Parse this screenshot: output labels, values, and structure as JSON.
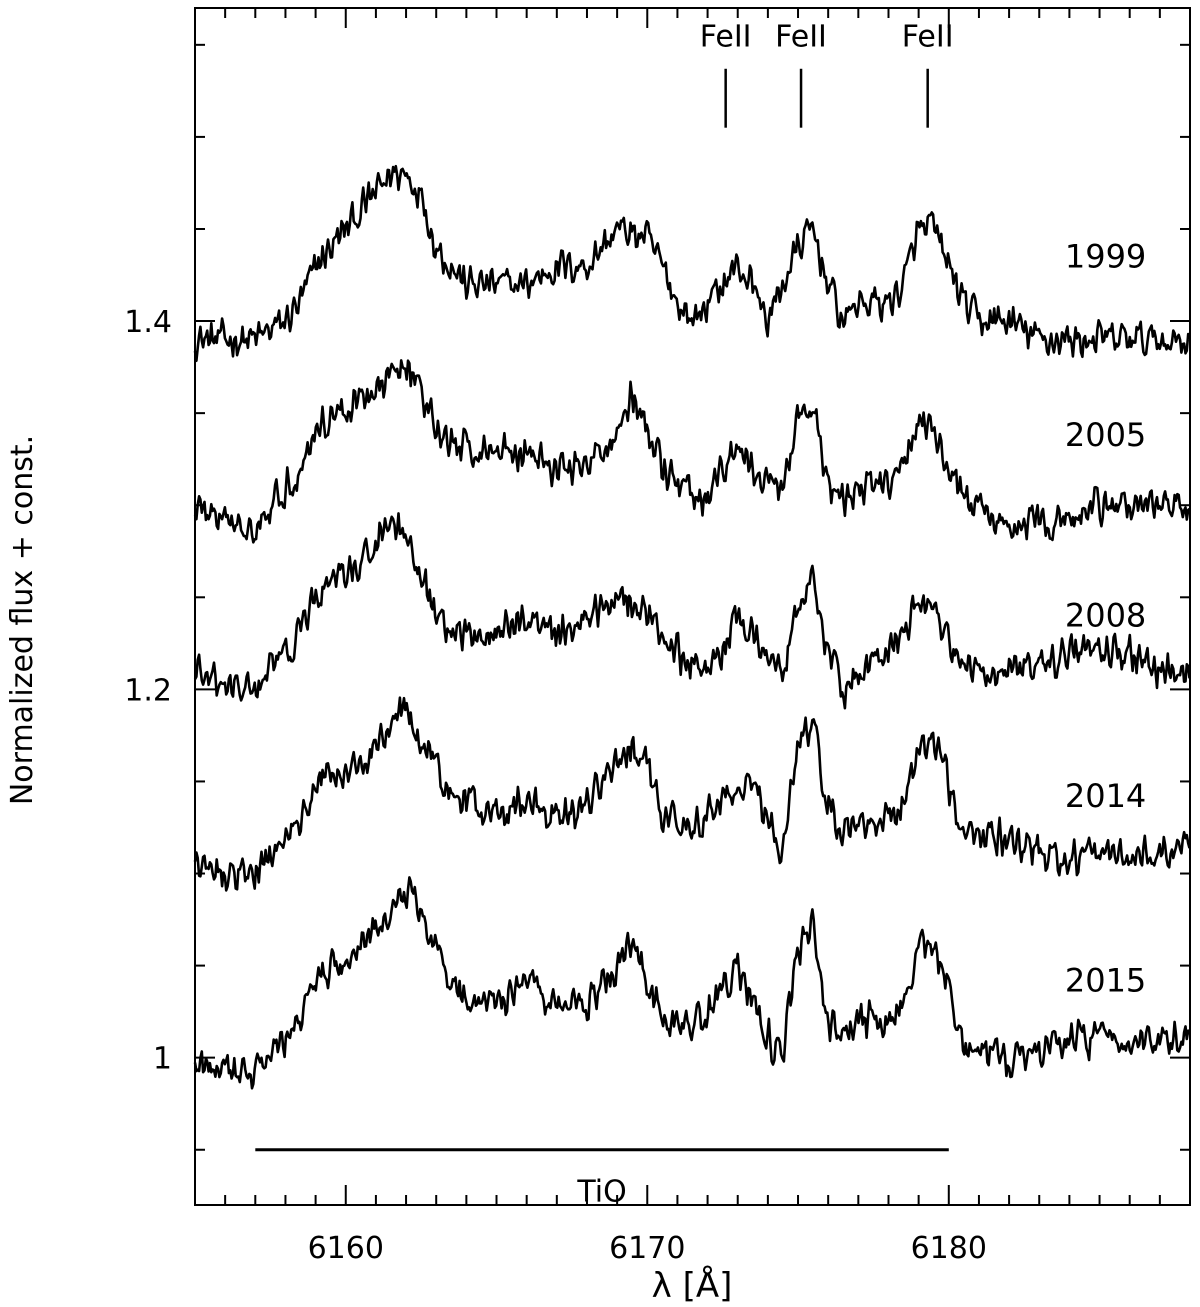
{
  "chart_data": {
    "type": "line",
    "title": "",
    "xlabel": "λ [Å]",
    "ylabel": "Normalized flux + const.",
    "xlim": [
      6155,
      6188
    ],
    "ylim": [
      0.92,
      1.57
    ],
    "x_ticks": [
      6160,
      6170,
      6180
    ],
    "x_tick_labels": [
      "6160",
      "6170",
      "6180"
    ],
    "y_ticks": [
      1.0,
      1.2,
      1.4
    ],
    "y_tick_labels": [
      "1",
      "1.2",
      "1.4"
    ],
    "grid": false,
    "series": [
      {
        "name": "1999",
        "label_x": 6185.2,
        "label_y": 1.435,
        "points": [
          [
            6155,
            1.39
          ],
          [
            6156,
            1.39
          ],
          [
            6157,
            1.39
          ],
          [
            6158,
            1.4
          ],
          [
            6158.5,
            1.41
          ],
          [
            6159,
            1.43
          ],
          [
            6159.5,
            1.44
          ],
          [
            6160,
            1.45
          ],
          [
            6160.5,
            1.46
          ],
          [
            6161,
            1.47
          ],
          [
            6161.5,
            1.48
          ],
          [
            6162,
            1.48
          ],
          [
            6162.5,
            1.47
          ],
          [
            6163,
            1.44
          ],
          [
            6163.5,
            1.43
          ],
          [
            6164,
            1.42
          ],
          [
            6165,
            1.42
          ],
          [
            6166,
            1.42
          ],
          [
            6167,
            1.43
          ],
          [
            6168,
            1.43
          ],
          [
            6169,
            1.45
          ],
          [
            6170,
            1.445
          ],
          [
            6170.5,
            1.43
          ],
          [
            6171,
            1.41
          ],
          [
            6171.5,
            1.4
          ],
          [
            6172,
            1.41
          ],
          [
            6172.5,
            1.42
          ],
          [
            6173,
            1.43
          ],
          [
            6173.5,
            1.42
          ],
          [
            6174,
            1.4
          ],
          [
            6174.5,
            1.42
          ],
          [
            6175,
            1.44
          ],
          [
            6175.5,
            1.45
          ],
          [
            6176,
            1.42
          ],
          [
            6176.5,
            1.4
          ],
          [
            6177,
            1.41
          ],
          [
            6178,
            1.41
          ],
          [
            6178.5,
            1.42
          ],
          [
            6179,
            1.45
          ],
          [
            6179.5,
            1.45
          ],
          [
            6180,
            1.43
          ],
          [
            6180.5,
            1.41
          ],
          [
            6181,
            1.4
          ],
          [
            6182,
            1.4
          ],
          [
            6183,
            1.39
          ],
          [
            6184,
            1.39
          ],
          [
            6185,
            1.39
          ],
          [
            6186,
            1.39
          ],
          [
            6187,
            1.39
          ],
          [
            6188,
            1.39
          ]
        ]
      },
      {
        "name": "2005",
        "label_x": 6185.2,
        "label_y": 1.338,
        "points": [
          [
            6155,
            1.3
          ],
          [
            6156,
            1.29
          ],
          [
            6157,
            1.29
          ],
          [
            6158,
            1.31
          ],
          [
            6158.5,
            1.32
          ],
          [
            6159,
            1.34
          ],
          [
            6159.5,
            1.35
          ],
          [
            6160,
            1.35
          ],
          [
            6160.5,
            1.36
          ],
          [
            6161,
            1.36
          ],
          [
            6161.5,
            1.37
          ],
          [
            6162,
            1.38
          ],
          [
            6162.5,
            1.36
          ],
          [
            6163,
            1.34
          ],
          [
            6164,
            1.33
          ],
          [
            6165,
            1.33
          ],
          [
            6166,
            1.33
          ],
          [
            6167,
            1.32
          ],
          [
            6168,
            1.32
          ],
          [
            6169,
            1.34
          ],
          [
            6169.5,
            1.36
          ],
          [
            6170,
            1.34
          ],
          [
            6170.5,
            1.32
          ],
          [
            6171,
            1.31
          ],
          [
            6172,
            1.3
          ],
          [
            6172.5,
            1.32
          ],
          [
            6173,
            1.33
          ],
          [
            6173.5,
            1.32
          ],
          [
            6174,
            1.31
          ],
          [
            6174.5,
            1.31
          ],
          [
            6175,
            1.35
          ],
          [
            6175.5,
            1.35
          ],
          [
            6176,
            1.31
          ],
          [
            6176.5,
            1.3
          ],
          [
            6177,
            1.31
          ],
          [
            6178,
            1.31
          ],
          [
            6178.5,
            1.32
          ],
          [
            6179,
            1.35
          ],
          [
            6179.5,
            1.34
          ],
          [
            6180,
            1.32
          ],
          [
            6180.5,
            1.3
          ],
          [
            6181,
            1.3
          ],
          [
            6182,
            1.29
          ],
          [
            6183,
            1.29
          ],
          [
            6184,
            1.29
          ],
          [
            6185,
            1.3
          ],
          [
            6186,
            1.3
          ],
          [
            6187,
            1.3
          ],
          [
            6188,
            1.3
          ]
        ]
      },
      {
        "name": "2008",
        "label_x": 6185.2,
        "label_y": 1.24,
        "points": [
          [
            6155,
            1.21
          ],
          [
            6156,
            1.2
          ],
          [
            6157,
            1.2
          ],
          [
            6158,
            1.22
          ],
          [
            6158.5,
            1.23
          ],
          [
            6159,
            1.25
          ],
          [
            6159.5,
            1.26
          ],
          [
            6160,
            1.26
          ],
          [
            6160.5,
            1.27
          ],
          [
            6161,
            1.28
          ],
          [
            6161.5,
            1.29
          ],
          [
            6162,
            1.28
          ],
          [
            6162.5,
            1.26
          ],
          [
            6163,
            1.24
          ],
          [
            6163.5,
            1.23
          ],
          [
            6164,
            1.23
          ],
          [
            6165,
            1.23
          ],
          [
            6166,
            1.24
          ],
          [
            6167,
            1.23
          ],
          [
            6168,
            1.24
          ],
          [
            6169,
            1.25
          ],
          [
            6169.5,
            1.25
          ],
          [
            6170,
            1.24
          ],
          [
            6170.5,
            1.23
          ],
          [
            6171,
            1.22
          ],
          [
            6172,
            1.21
          ],
          [
            6172.5,
            1.22
          ],
          [
            6173,
            1.24
          ],
          [
            6173.5,
            1.23
          ],
          [
            6174,
            1.22
          ],
          [
            6174.5,
            1.21
          ],
          [
            6175,
            1.25
          ],
          [
            6175.5,
            1.26
          ],
          [
            6176,
            1.22
          ],
          [
            6176.5,
            1.2
          ],
          [
            6177,
            1.21
          ],
          [
            6178,
            1.22
          ],
          [
            6178.5,
            1.23
          ],
          [
            6179,
            1.25
          ],
          [
            6179.5,
            1.24
          ],
          [
            6180,
            1.23
          ],
          [
            6180.5,
            1.21
          ],
          [
            6181,
            1.21
          ],
          [
            6182,
            1.21
          ],
          [
            6183,
            1.21
          ],
          [
            6184,
            1.22
          ],
          [
            6185,
            1.22
          ],
          [
            6186,
            1.22
          ],
          [
            6187,
            1.21
          ],
          [
            6188,
            1.21
          ]
        ]
      },
      {
        "name": "2014",
        "label_x": 6185.2,
        "label_y": 1.142,
        "points": [
          [
            6155,
            1.11
          ],
          [
            6156,
            1.1
          ],
          [
            6157,
            1.1
          ],
          [
            6158,
            1.12
          ],
          [
            6158.5,
            1.13
          ],
          [
            6159,
            1.15
          ],
          [
            6159.5,
            1.155
          ],
          [
            6160,
            1.155
          ],
          [
            6160.5,
            1.16
          ],
          [
            6161,
            1.17
          ],
          [
            6161.5,
            1.18
          ],
          [
            6162,
            1.19
          ],
          [
            6162.5,
            1.17
          ],
          [
            6163,
            1.16
          ],
          [
            6163.5,
            1.14
          ],
          [
            6164,
            1.14
          ],
          [
            6165,
            1.13
          ],
          [
            6166,
            1.14
          ],
          [
            6167,
            1.13
          ],
          [
            6168,
            1.14
          ],
          [
            6169,
            1.16
          ],
          [
            6169.5,
            1.17
          ],
          [
            6170,
            1.16
          ],
          [
            6170.5,
            1.13
          ],
          [
            6171,
            1.13
          ],
          [
            6172,
            1.13
          ],
          [
            6172.5,
            1.14
          ],
          [
            6173,
            1.15
          ],
          [
            6173.5,
            1.15
          ],
          [
            6174,
            1.13
          ],
          [
            6174.5,
            1.11
          ],
          [
            6175,
            1.17
          ],
          [
            6175.5,
            1.18
          ],
          [
            6176,
            1.14
          ],
          [
            6176.5,
            1.12
          ],
          [
            6177,
            1.13
          ],
          [
            6178,
            1.13
          ],
          [
            6178.5,
            1.14
          ],
          [
            6179,
            1.17
          ],
          [
            6179.5,
            1.17
          ],
          [
            6180,
            1.15
          ],
          [
            6180.5,
            1.12
          ],
          [
            6181,
            1.12
          ],
          [
            6182,
            1.12
          ],
          [
            6183,
            1.11
          ],
          [
            6184,
            1.11
          ],
          [
            6185,
            1.11
          ],
          [
            6186,
            1.11
          ],
          [
            6187,
            1.11
          ],
          [
            6188,
            1.12
          ]
        ]
      },
      {
        "name": "2015",
        "label_x": 6185.2,
        "label_y": 1.042,
        "points": [
          [
            6155,
            1.0
          ],
          [
            6156,
            0.99
          ],
          [
            6157,
            0.99
          ],
          [
            6158,
            1.01
          ],
          [
            6158.5,
            1.02
          ],
          [
            6159,
            1.04
          ],
          [
            6159.5,
            1.05
          ],
          [
            6160,
            1.05
          ],
          [
            6160.5,
            1.06
          ],
          [
            6161,
            1.07
          ],
          [
            6161.5,
            1.08
          ],
          [
            6162,
            1.09
          ],
          [
            6162.5,
            1.08
          ],
          [
            6163,
            1.06
          ],
          [
            6163.5,
            1.04
          ],
          [
            6164,
            1.03
          ],
          [
            6165,
            1.03
          ],
          [
            6166,
            1.04
          ],
          [
            6167,
            1.03
          ],
          [
            6168,
            1.03
          ],
          [
            6169,
            1.05
          ],
          [
            6169.5,
            1.06
          ],
          [
            6170,
            1.04
          ],
          [
            6170.5,
            1.02
          ],
          [
            6171,
            1.02
          ],
          [
            6172,
            1.02
          ],
          [
            6172.5,
            1.04
          ],
          [
            6173,
            1.05
          ],
          [
            6173.5,
            1.03
          ],
          [
            6174,
            1.01
          ],
          [
            6174.5,
            1.0
          ],
          [
            6175,
            1.06
          ],
          [
            6175.5,
            1.07
          ],
          [
            6176,
            1.02
          ],
          [
            6176.5,
            1.01
          ],
          [
            6177,
            1.02
          ],
          [
            6178,
            1.02
          ],
          [
            6178.5,
            1.03
          ],
          [
            6179,
            1.06
          ],
          [
            6179.5,
            1.06
          ],
          [
            6180,
            1.04
          ],
          [
            6180.5,
            1.0
          ],
          [
            6181,
            1.0
          ],
          [
            6182,
            1.0
          ],
          [
            6183,
            1.0
          ],
          [
            6184,
            1.01
          ],
          [
            6185,
            1.01
          ],
          [
            6186,
            1.01
          ],
          [
            6187,
            1.01
          ],
          [
            6188,
            1.01
          ]
        ]
      }
    ],
    "annotations": {
      "line_markers": [
        {
          "label": "FeII",
          "x": 6172.6
        },
        {
          "label": "FeII",
          "x": 6175.1
        },
        {
          "label": "FeII",
          "x": 6179.3
        }
      ],
      "line_marker_y_range": [
        1.505,
        1.537
      ],
      "line_marker_label_y": 1.555,
      "band": {
        "label": "TiO",
        "x_start": 6157.0,
        "x_end": 6180.0,
        "y": 0.95,
        "label_y": 0.928
      }
    }
  }
}
